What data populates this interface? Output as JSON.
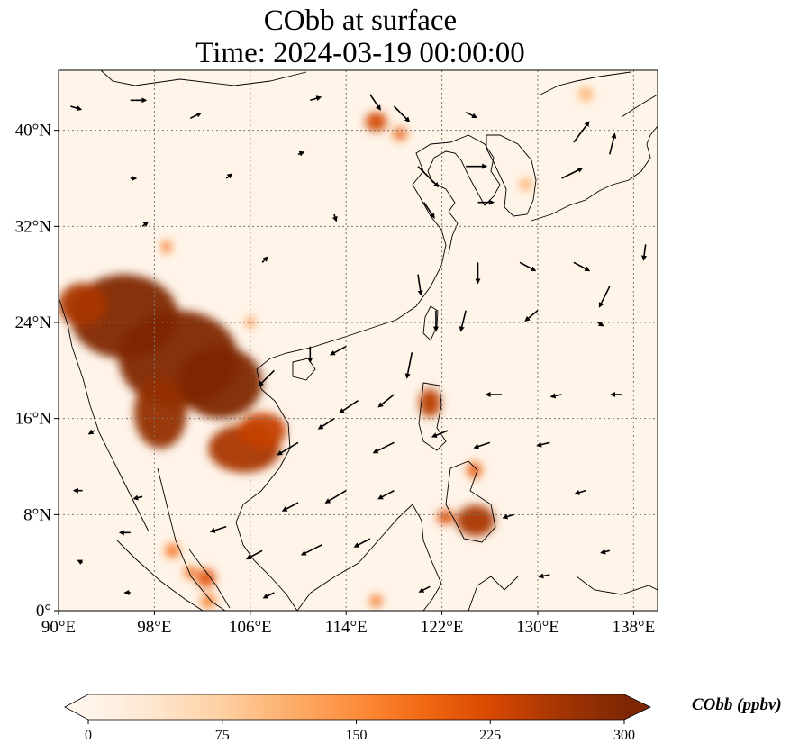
{
  "title": {
    "line1": "CObb at surface",
    "line2": "Time: 2024-03-19 00:00:00"
  },
  "map": {
    "extent": {
      "lon_min": 90,
      "lon_max": 140,
      "lat_min": 0,
      "lat_max": 45
    },
    "lon_ticks": [
      {
        "value": 90,
        "label": "90°E"
      },
      {
        "value": 98,
        "label": "98°E"
      },
      {
        "value": 106,
        "label": "106°E"
      },
      {
        "value": 114,
        "label": "114°E"
      },
      {
        "value": 122,
        "label": "122°E"
      },
      {
        "value": 130,
        "label": "130°E"
      },
      {
        "value": 138,
        "label": "138°E"
      }
    ],
    "lat_ticks": [
      {
        "value": 0,
        "label": "0°"
      },
      {
        "value": 8,
        "label": "8°N"
      },
      {
        "value": 16,
        "label": "16°N"
      },
      {
        "value": 24,
        "label": "24°N"
      },
      {
        "value": 32,
        "label": "32°N"
      },
      {
        "value": 40,
        "label": "40°N"
      }
    ],
    "gridlines": true,
    "colors": {
      "background": "#fff4e8",
      "gridline": "#777777",
      "coast": "#000000",
      "arrow": "#000000"
    },
    "hotspots": [
      {
        "lon": 95.5,
        "lat": 24.5,
        "rx": 4.5,
        "ry": 3.5,
        "level": 300
      },
      {
        "lon": 100.0,
        "lat": 21.0,
        "rx": 5.0,
        "ry": 4.0,
        "level": 300
      },
      {
        "lon": 103.5,
        "lat": 19.0,
        "rx": 3.5,
        "ry": 3.0,
        "level": 300
      },
      {
        "lon": 98.5,
        "lat": 16.5,
        "rx": 2.2,
        "ry": 3.0,
        "level": 280
      },
      {
        "lon": 105.5,
        "lat": 13.5,
        "rx": 3.0,
        "ry": 2.0,
        "level": 260
      },
      {
        "lon": 107.0,
        "lat": 15.0,
        "rx": 2.0,
        "ry": 1.5,
        "level": 240
      },
      {
        "lon": 92.0,
        "lat": 25.5,
        "rx": 2.0,
        "ry": 1.8,
        "level": 260
      },
      {
        "lon": 121.0,
        "lat": 17.3,
        "rx": 0.9,
        "ry": 1.2,
        "level": 250
      },
      {
        "lon": 124.8,
        "lat": 7.5,
        "rx": 1.6,
        "ry": 1.3,
        "level": 260
      },
      {
        "lon": 122.3,
        "lat": 7.8,
        "rx": 0.7,
        "ry": 0.6,
        "level": 220
      },
      {
        "lon": 124.7,
        "lat": 11.7,
        "rx": 0.6,
        "ry": 0.7,
        "level": 200
      },
      {
        "lon": 116.5,
        "lat": 40.7,
        "rx": 0.9,
        "ry": 0.8,
        "level": 230
      },
      {
        "lon": 118.5,
        "lat": 39.7,
        "rx": 0.6,
        "ry": 0.5,
        "level": 200
      },
      {
        "lon": 102.3,
        "lat": 2.7,
        "rx": 0.8,
        "ry": 0.8,
        "level": 210
      },
      {
        "lon": 99.5,
        "lat": 5.0,
        "rx": 0.6,
        "ry": 0.6,
        "level": 180
      },
      {
        "lon": 101.0,
        "lat": 3.2,
        "rx": 0.5,
        "ry": 0.5,
        "level": 190
      },
      {
        "lon": 102.5,
        "lat": 0.8,
        "rx": 0.6,
        "ry": 0.6,
        "level": 170
      },
      {
        "lon": 116.5,
        "lat": 0.8,
        "rx": 0.5,
        "ry": 0.5,
        "level": 180
      },
      {
        "lon": 99.0,
        "lat": 30.3,
        "rx": 0.4,
        "ry": 0.5,
        "level": 180
      },
      {
        "lon": 106.0,
        "lat": 24.0,
        "rx": 0.4,
        "ry": 0.4,
        "level": 150
      },
      {
        "lon": 129.0,
        "lat": 35.5,
        "rx": 0.5,
        "ry": 0.5,
        "level": 120
      },
      {
        "lon": 134.0,
        "lat": 43.0,
        "rx": 0.6,
        "ry": 0.6,
        "level": 110
      }
    ],
    "wind_arrows": [
      {
        "lon": 91,
        "lat": 42,
        "u": 1,
        "v": -0.3
      },
      {
        "lon": 96,
        "lat": 42.5,
        "u": 1.5,
        "v": 0
      },
      {
        "lon": 101,
        "lat": 41,
        "u": 1,
        "v": 0.5
      },
      {
        "lon": 111,
        "lat": 42.5,
        "u": 1,
        "v": 0.3
      },
      {
        "lon": 116,
        "lat": 43,
        "u": 1,
        "v": -1.5
      },
      {
        "lon": 118,
        "lat": 42,
        "u": 1.5,
        "v": -1.5
      },
      {
        "lon": 124,
        "lat": 41.5,
        "u": 1,
        "v": -0.5
      },
      {
        "lon": 133,
        "lat": 39,
        "u": 1.5,
        "v": 2
      },
      {
        "lon": 136,
        "lat": 38,
        "u": 0.5,
        "v": 2
      },
      {
        "lon": 132,
        "lat": 36,
        "u": 2,
        "v": 1
      },
      {
        "lon": 120,
        "lat": 37,
        "u": 2,
        "v": -2
      },
      {
        "lon": 124,
        "lat": 37,
        "u": 2,
        "v": 0
      },
      {
        "lon": 125,
        "lat": 34,
        "u": 1.5,
        "v": 0
      },
      {
        "lon": 120.5,
        "lat": 34,
        "u": 1,
        "v": -1.5
      },
      {
        "lon": 96,
        "lat": 36,
        "u": 0.5,
        "v": 0
      },
      {
        "lon": 104,
        "lat": 36,
        "u": 0.5,
        "v": 0.4
      },
      {
        "lon": 110,
        "lat": 38,
        "u": 0.5,
        "v": 0.2
      },
      {
        "lon": 113,
        "lat": 33,
        "u": 0.2,
        "v": -0.6
      },
      {
        "lon": 97,
        "lat": 32,
        "u": 0.5,
        "v": 0.4
      },
      {
        "lon": 107,
        "lat": 29,
        "u": 0.5,
        "v": 0.5
      },
      {
        "lon": 120,
        "lat": 28,
        "u": 0.3,
        "v": -2
      },
      {
        "lon": 125,
        "lat": 29,
        "u": 0,
        "v": -2
      },
      {
        "lon": 128.5,
        "lat": 29,
        "u": 1.5,
        "v": -0.8
      },
      {
        "lon": 133,
        "lat": 29,
        "u": 1.5,
        "v": -0.8
      },
      {
        "lon": 136,
        "lat": 27,
        "u": -1,
        "v": -2
      },
      {
        "lon": 139,
        "lat": 30.5,
        "u": -0.2,
        "v": -1.5
      },
      {
        "lon": 121.5,
        "lat": 25,
        "u": 0,
        "v": -2
      },
      {
        "lon": 124,
        "lat": 25,
        "u": -0.5,
        "v": -2
      },
      {
        "lon": 130,
        "lat": 25,
        "u": -1.2,
        "v": -1
      },
      {
        "lon": 135,
        "lat": 24,
        "u": 0.5,
        "v": -0.3
      },
      {
        "lon": 119.5,
        "lat": 21.5,
        "u": -0.5,
        "v": -2.5
      },
      {
        "lon": 114,
        "lat": 22,
        "u": -1.5,
        "v": -0.8
      },
      {
        "lon": 111,
        "lat": 22,
        "u": 0,
        "v": -1.5
      },
      {
        "lon": 108,
        "lat": 20,
        "u": -1.5,
        "v": -1.5
      },
      {
        "lon": 118,
        "lat": 18,
        "u": -1.5,
        "v": -1.2
      },
      {
        "lon": 115,
        "lat": 17.5,
        "u": -1.8,
        "v": -1.2
      },
      {
        "lon": 113,
        "lat": 16,
        "u": -1.5,
        "v": -1
      },
      {
        "lon": 110,
        "lat": 14,
        "u": -2,
        "v": -1.2
      },
      {
        "lon": 118,
        "lat": 14,
        "u": -2,
        "v": -1
      },
      {
        "lon": 122.5,
        "lat": 15,
        "u": -1.5,
        "v": -0.6
      },
      {
        "lon": 127,
        "lat": 18,
        "u": -1.5,
        "v": 0
      },
      {
        "lon": 132,
        "lat": 18,
        "u": -1,
        "v": -0.2
      },
      {
        "lon": 137,
        "lat": 18,
        "u": -1,
        "v": 0
      },
      {
        "lon": 126,
        "lat": 14,
        "u": -1.5,
        "v": -0.5
      },
      {
        "lon": 131,
        "lat": 14,
        "u": -1.2,
        "v": -0.3
      },
      {
        "lon": 114,
        "lat": 10,
        "u": -2,
        "v": -1.2
      },
      {
        "lon": 110,
        "lat": 9,
        "u": -1.5,
        "v": -0.8
      },
      {
        "lon": 118,
        "lat": 10,
        "u": -1.5,
        "v": -0.8
      },
      {
        "lon": 112,
        "lat": 5.5,
        "u": -2,
        "v": -1
      },
      {
        "lon": 107,
        "lat": 5,
        "u": -1.5,
        "v": -0.8
      },
      {
        "lon": 116,
        "lat": 6,
        "u": -1.5,
        "v": -0.8
      },
      {
        "lon": 104,
        "lat": 7,
        "u": -1.5,
        "v": -0.5
      },
      {
        "lon": 96,
        "lat": 6.5,
        "u": -1,
        "v": 0
      },
      {
        "lon": 92,
        "lat": 10,
        "u": -0.8,
        "v": 0
      },
      {
        "lon": 93,
        "lat": 15,
        "u": -0.5,
        "v": -0.3
      },
      {
        "lon": 97,
        "lat": 9.5,
        "u": -0.8,
        "v": -0.2
      },
      {
        "lon": 128,
        "lat": 8,
        "u": -1,
        "v": -0.3
      },
      {
        "lon": 134,
        "lat": 10,
        "u": -1,
        "v": -0.3
      },
      {
        "lon": 136,
        "lat": 5,
        "u": -0.8,
        "v": -0.2
      },
      {
        "lon": 131,
        "lat": 3,
        "u": -1,
        "v": -0.2
      },
      {
        "lon": 121,
        "lat": 2,
        "u": -1,
        "v": -0.5
      },
      {
        "lon": 108,
        "lat": 1.5,
        "u": -1,
        "v": -0.5
      },
      {
        "lon": 96,
        "lat": 1.5,
        "u": -0.5,
        "v": 0
      },
      {
        "lon": 92,
        "lat": 4,
        "u": -0.4,
        "v": 0.2
      }
    ]
  },
  "colorbar": {
    "label": "CObb (ppbv)",
    "min": 0,
    "max": 300,
    "extend": "both",
    "ticks": [
      {
        "value": 0,
        "label": "0"
      },
      {
        "value": 75,
        "label": "75"
      },
      {
        "value": 150,
        "label": "150"
      },
      {
        "value": 225,
        "label": "225"
      },
      {
        "value": 300,
        "label": "300"
      }
    ],
    "colormap": [
      "#fff5eb",
      "#fee6ce",
      "#fdd0a2",
      "#fdae6b",
      "#fd8d3c",
      "#f16913",
      "#d94801",
      "#a63603",
      "#7f2704"
    ]
  }
}
